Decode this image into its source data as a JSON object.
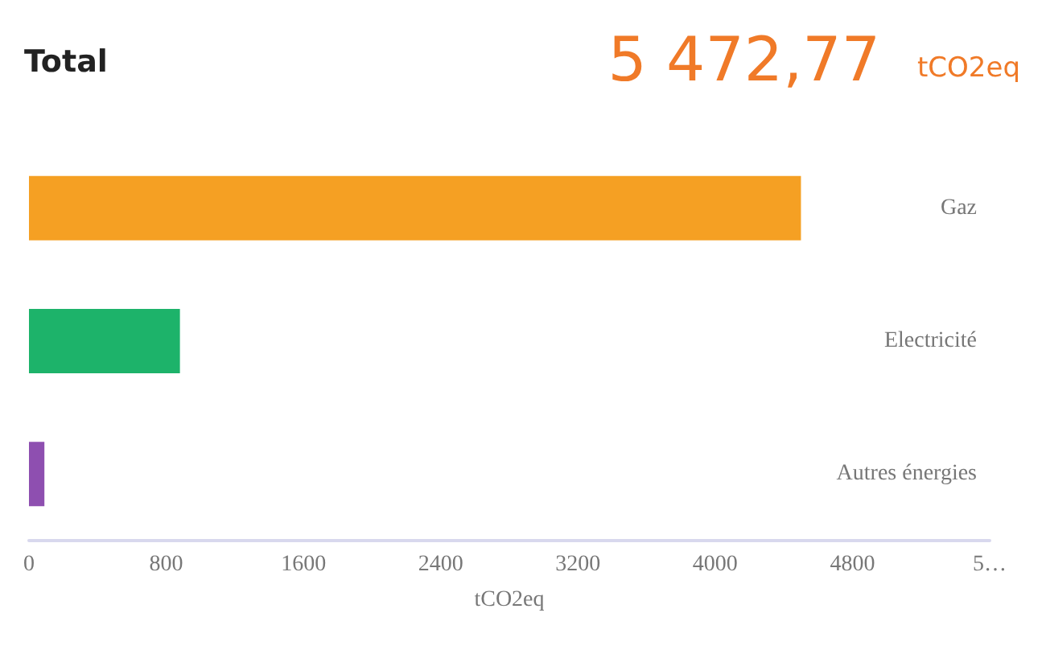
{
  "chart_data": {
    "type": "bar",
    "orientation": "horizontal",
    "title": "Total",
    "annotations": [
      "5 472,77",
      "tCO2eq"
    ],
    "xlabel": "tCO2eq",
    "categories": [
      "Gaz",
      "Electricité",
      "Autres énergies"
    ],
    "values": [
      4500,
      880,
      90
    ],
    "colors": [
      "#f5a023",
      "#1db36a",
      "#8e4fb0"
    ],
    "xlim": [
      0,
      5600
    ],
    "xticks": [
      0,
      800,
      1600,
      2400,
      3200,
      4000,
      4800,
      {
        "value": 5600,
        "label": "5…"
      }
    ],
    "grid": false
  }
}
